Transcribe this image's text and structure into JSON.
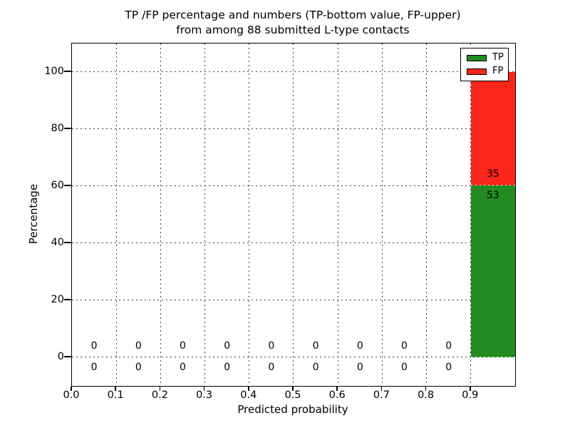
{
  "title": {
    "line1": "TP /FP percentage and numbers (TP-bottom value, FP-upper)",
    "line2": "from among 88 submitted L-type contacts"
  },
  "chart_data": {
    "type": "bar",
    "stacked": true,
    "title": "TP /FP percentage and numbers (TP-bottom value, FP-upper) from among 88 submitted L-type contacts",
    "xlabel": "Predicted probability",
    "ylabel": "Percentage",
    "xlim": [
      0.0,
      1.0
    ],
    "ylim": [
      -10,
      110
    ],
    "grid": "dotted",
    "legend_position": "upper right",
    "total_contacts": 88,
    "bin_edges": [
      0.0,
      0.1,
      0.2,
      0.3,
      0.4,
      0.5,
      0.6,
      0.7,
      0.8,
      0.9,
      1.0
    ],
    "x_ticks": [
      {
        "v": 0.0,
        "label": "0.0"
      },
      {
        "v": 0.1,
        "label": "0.1"
      },
      {
        "v": 0.2,
        "label": "0.2"
      },
      {
        "v": 0.3,
        "label": "0.3"
      },
      {
        "v": 0.4,
        "label": "0.4"
      },
      {
        "v": 0.5,
        "label": "0.5"
      },
      {
        "v": 0.6,
        "label": "0.6"
      },
      {
        "v": 0.7,
        "label": "0.7"
      },
      {
        "v": 0.8,
        "label": "0.8"
      },
      {
        "v": 0.9,
        "label": "0.9"
      }
    ],
    "y_ticks": [
      {
        "v": 0,
        "label": "0"
      },
      {
        "v": 20,
        "label": "20"
      },
      {
        "v": 40,
        "label": "40"
      },
      {
        "v": 60,
        "label": "60"
      },
      {
        "v": 80,
        "label": "80"
      },
      {
        "v": 100,
        "label": "100"
      }
    ],
    "series": [
      {
        "name": "TP",
        "color": "#228b22",
        "counts": [
          0,
          0,
          0,
          0,
          0,
          0,
          0,
          0,
          0,
          53
        ]
      },
      {
        "name": "FP",
        "color": "#fb261b",
        "counts": [
          0,
          0,
          0,
          0,
          0,
          0,
          0,
          0,
          0,
          35
        ]
      }
    ]
  }
}
